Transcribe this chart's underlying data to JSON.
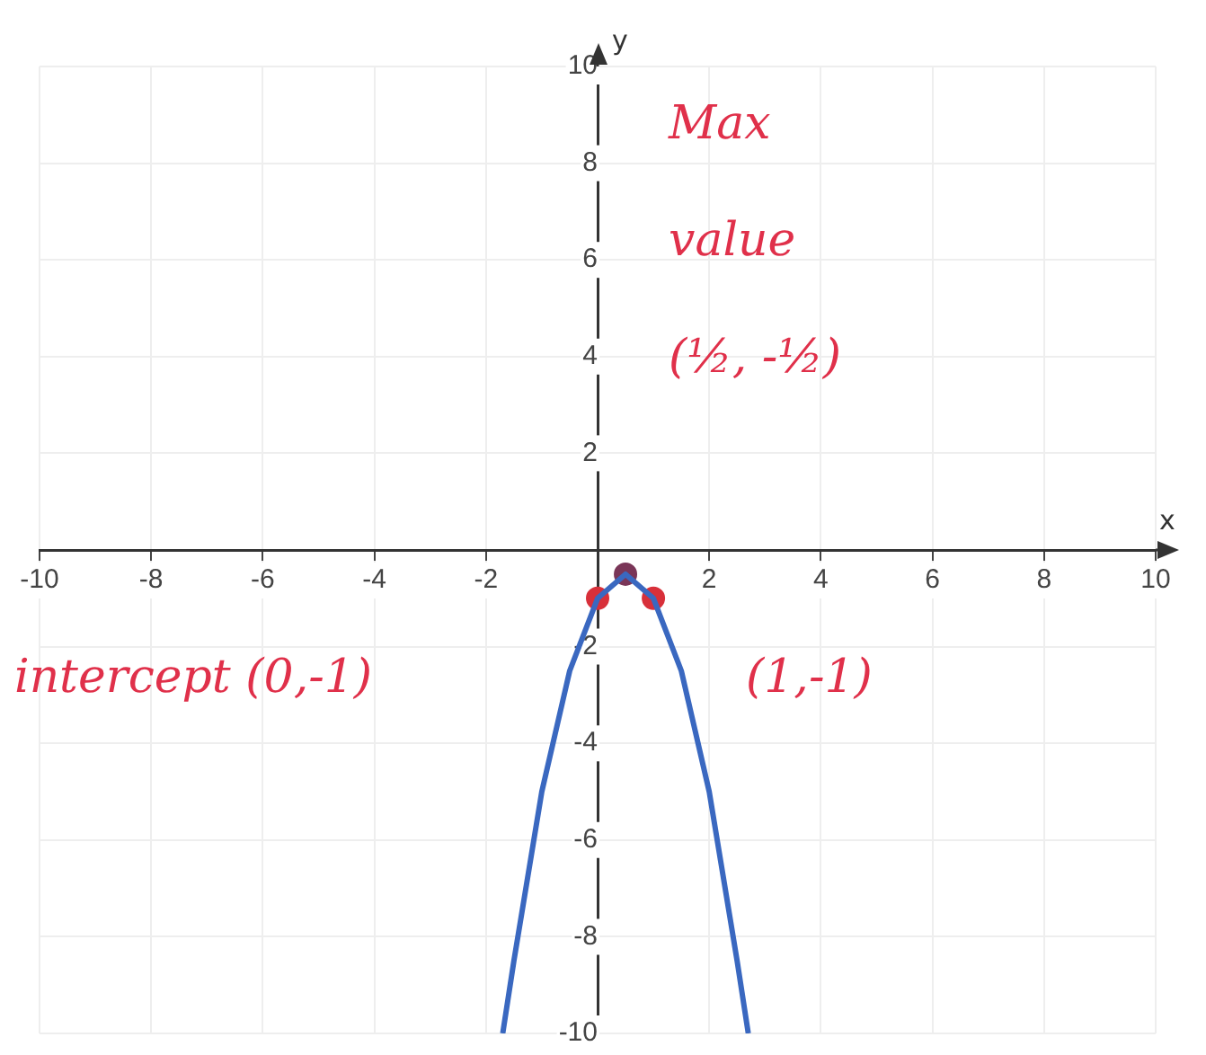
{
  "chart_data": {
    "type": "line",
    "xlabel": "x",
    "ylabel": "y",
    "xlim": [
      -10,
      10
    ],
    "ylim": [
      -10,
      10
    ],
    "xticks": [
      -10,
      -8,
      -6,
      -4,
      -2,
      {
        "value": 0,
        "label": null
      },
      2,
      4,
      6,
      8,
      10
    ],
    "yticks": [
      -10,
      -8,
      -6,
      -4,
      -2,
      {
        "value": 0,
        "label": null
      },
      2,
      4,
      6,
      8,
      10
    ],
    "grid": true,
    "legend": false,
    "series": [
      {
        "color": "#3a68c0",
        "marker": "none",
        "x": [
          -1.7,
          -1.5,
          -1,
          -0.5,
          0,
          0.5,
          1,
          1.5,
          2,
          2.5,
          2.7
        ],
        "values": [
          -10,
          -8.5,
          -5,
          -2.5,
          -1,
          -0.5,
          -1,
          -2.5,
          -5,
          -8.5,
          -10
        ]
      },
      {
        "type": "scatter",
        "color": "#d8303a",
        "marker": "circle",
        "x": [
          0,
          1
        ],
        "values": [
          -1,
          -1
        ]
      },
      {
        "type": "scatter",
        "color": "#7a3658",
        "marker": "circle",
        "x": [
          0.5
        ],
        "values": [
          -0.5
        ]
      }
    ],
    "annotations": [
      "Max value (½, -½)",
      "intercept (0,-1)",
      "(1,-1)"
    ]
  }
}
